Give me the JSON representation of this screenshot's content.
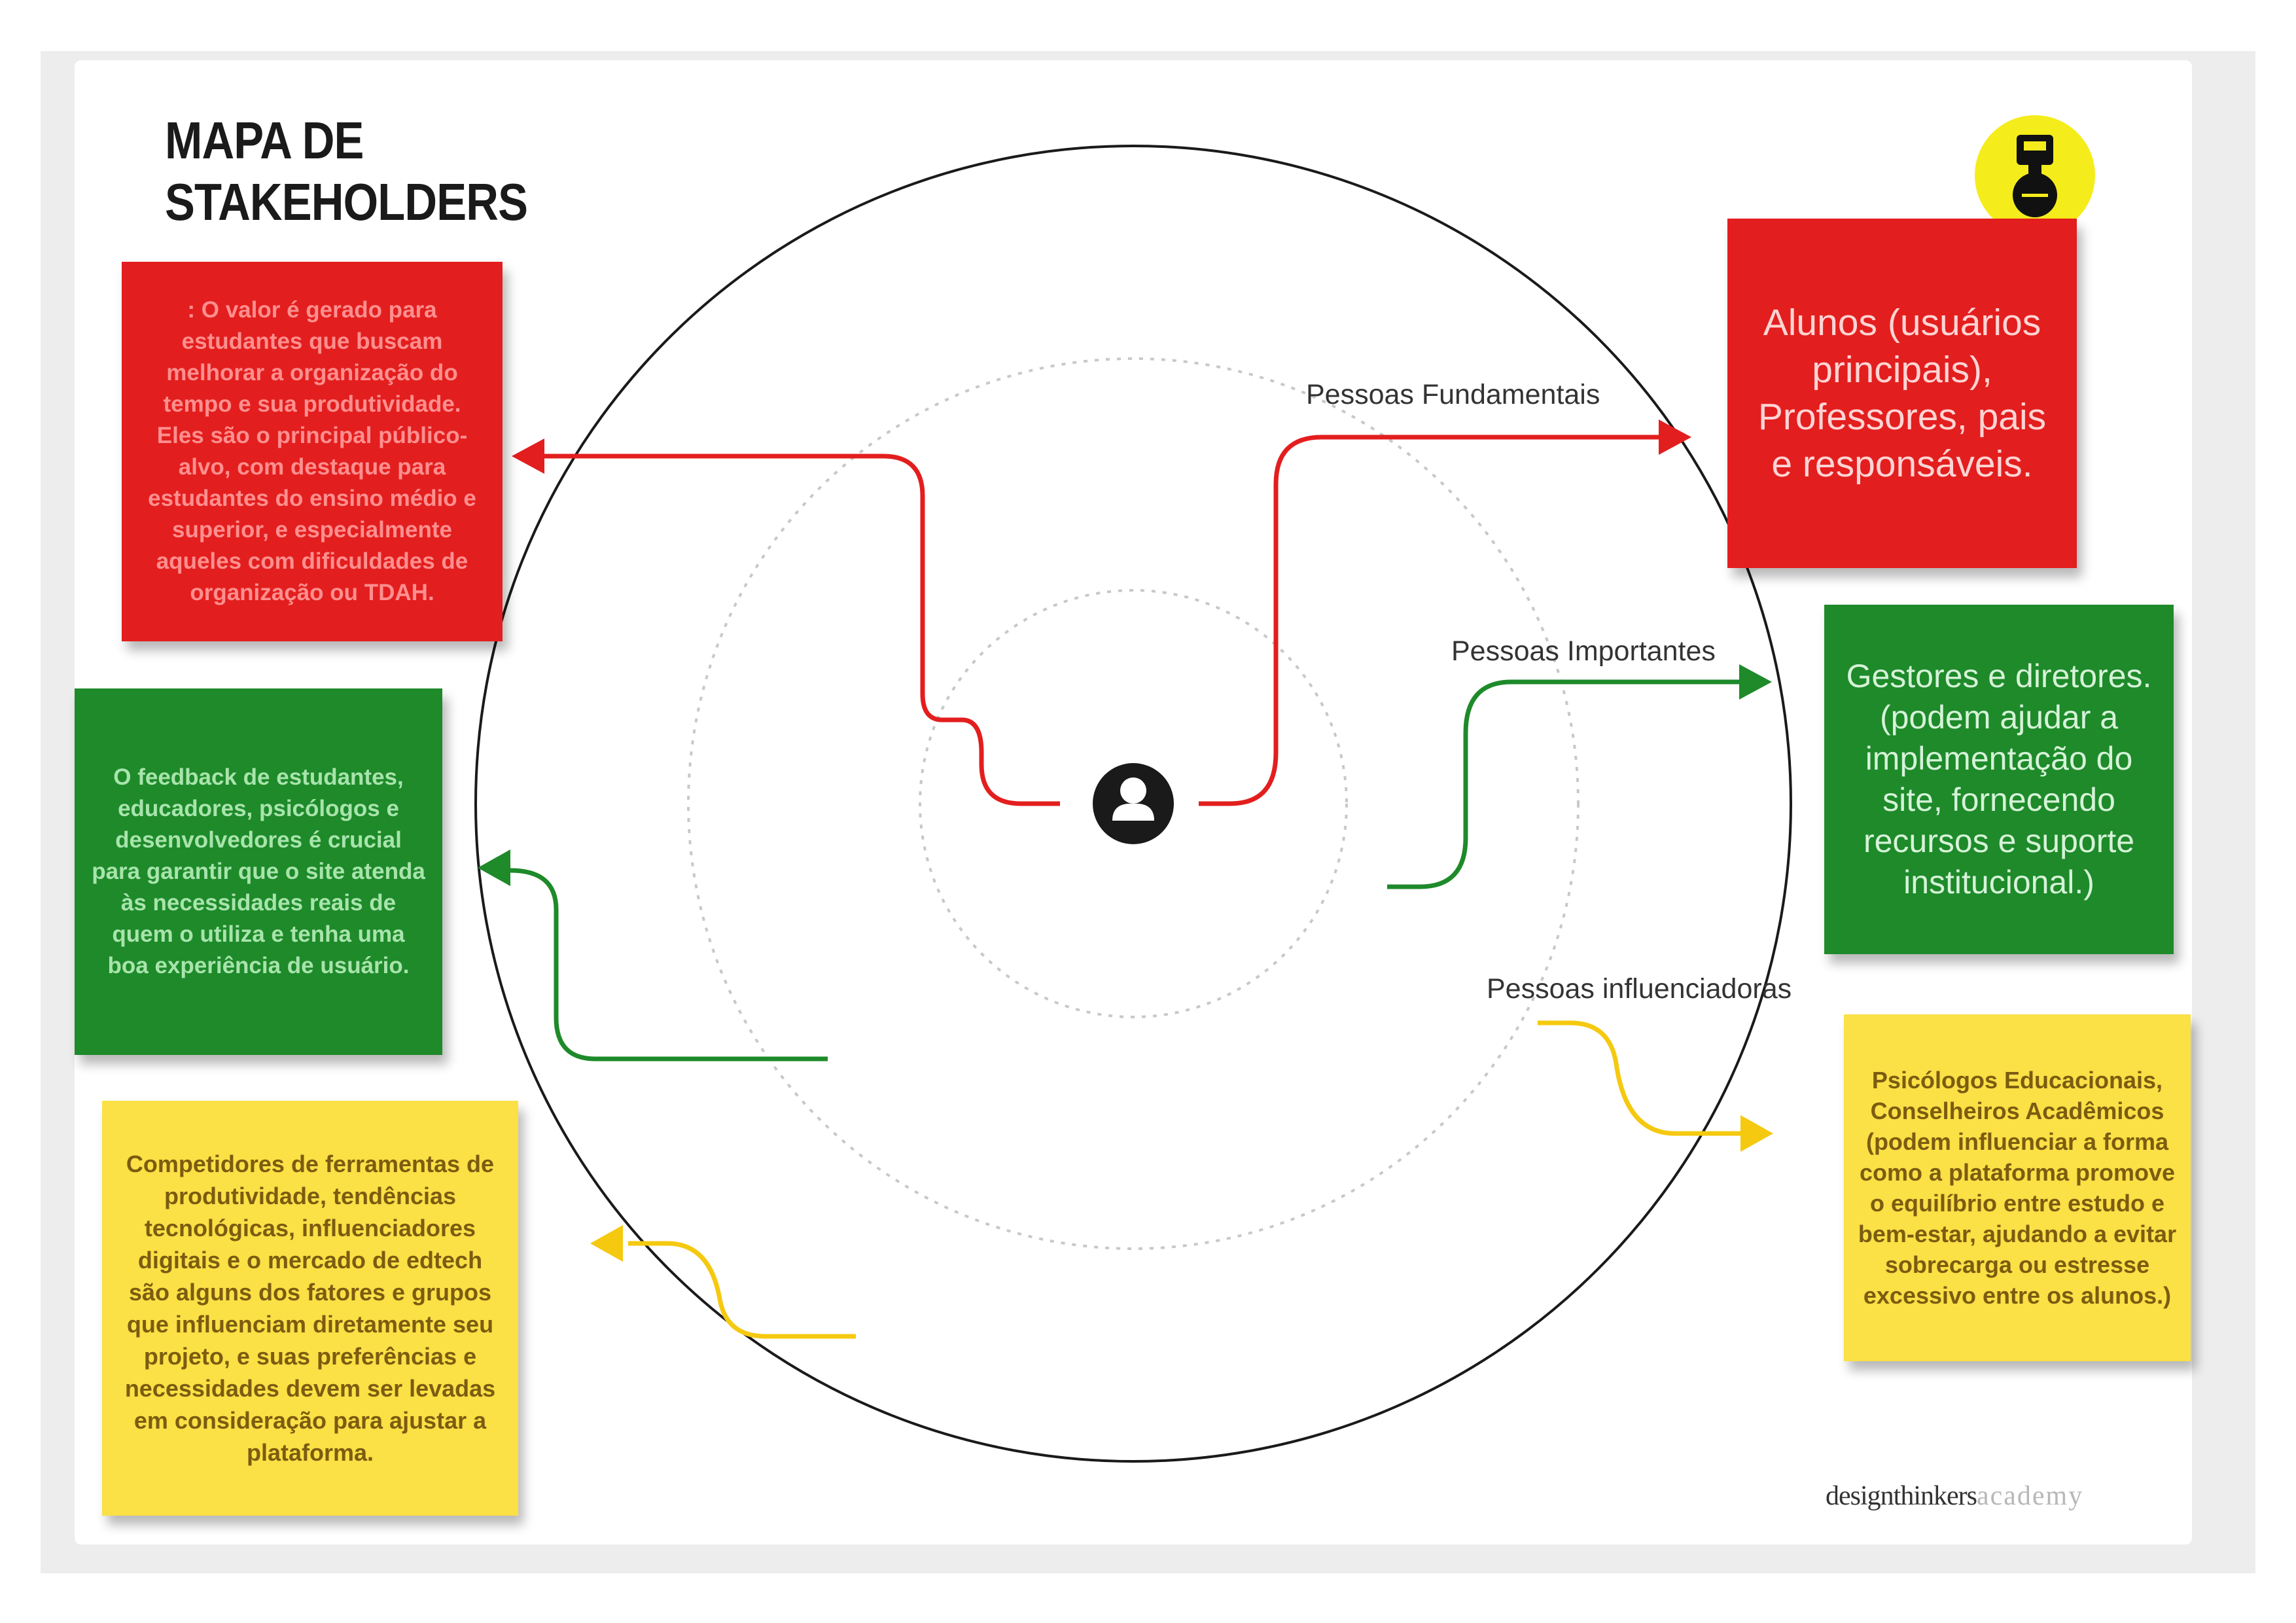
{
  "title": "MAPA DE\nSTAKEHOLDERS",
  "circle_labels": {
    "fundamentais": "Pessoas Fundamentais",
    "importantes": "Pessoas Importantes",
    "influenciadoras": "Pessoas influenciadoras"
  },
  "notes": {
    "red_left": ": O valor é gerado para estudantes que buscam melhorar a organização do tempo e sua produtividade. Eles são o principal público-alvo, com destaque para estudantes do ensino médio e superior, e especialmente aqueles com dificuldades de organização ou TDAH.",
    "green_left": "O feedback de estudantes, educadores, psicólogos e desenvolvedores é crucial para garantir que o site atenda às necessidades reais de quem o utiliza e tenha uma boa experiência de usuário.",
    "yellow_left": "Competidores de ferramentas de produtividade, tendências tecnológicas, influenciadores digitais e o mercado de edtech são alguns dos fatores e grupos que influenciam diretamente seu projeto, e suas preferências e necessidades devem ser levadas em consideração para ajustar a plataforma.",
    "red_right": "Alunos (usuários principais), Professores, pais e responsáveis.",
    "green_right": "Gestores e diretores. (podem ajudar a implementação do site, fornecendo recursos e suporte institucional.)",
    "yellow_right": "Psicólogos Educacionais, Conselheiros Acadêmicos (podem influenciar a forma como a plataforma promove o equilíbrio entre estudo e bem-estar, ajudando a evitar sobrecarga ou estresse excessivo entre os alunos.)"
  },
  "brand": {
    "part1": "designthinkers",
    "part2": "academy"
  },
  "icons": {
    "center": "person-icon",
    "logo": "robot-logo-icon"
  },
  "colors": {
    "red": "#e31e1e",
    "green": "#1e8a2a",
    "yellow": "#fbe046",
    "logo": "#f5ec1c"
  }
}
